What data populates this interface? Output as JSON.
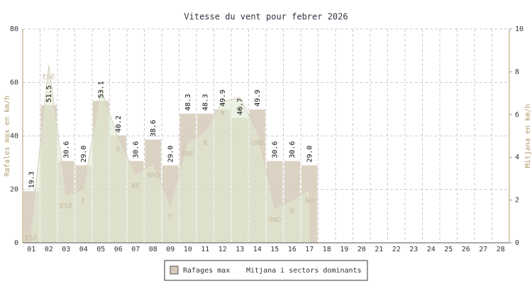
{
  "chart_data": {
    "type": "bar",
    "title": "Vitesse du vent pour febrer 2026",
    "ylabel": "Rafales max en km/h",
    "y2label": "Mitjana en km/h",
    "categories": [
      "01",
      "02",
      "03",
      "04",
      "05",
      "06",
      "07",
      "08",
      "09",
      "10",
      "11",
      "12",
      "13",
      "14",
      "15",
      "16",
      "17",
      "18",
      "19",
      "20",
      "21",
      "22",
      "23",
      "24",
      "25",
      "26",
      "27",
      "28"
    ],
    "ylim": [
      0,
      80
    ],
    "yticks": [
      0,
      20,
      40,
      60,
      80
    ],
    "y2lim": [
      0,
      10
    ],
    "y2ticks": [
      0,
      2,
      4,
      6,
      8,
      10
    ],
    "grid": true,
    "series": [
      {
        "name": "Rafages max",
        "color": "#d6cab8",
        "values": [
          19.3,
          51.5,
          30.6,
          29.0,
          53.1,
          40.2,
          30.6,
          38.6,
          29.0,
          48.3,
          48.3,
          49.9,
          46.7,
          49.9,
          30.6,
          30.6,
          29.0,
          null,
          null,
          null,
          null,
          null,
          null,
          null,
          null,
          null,
          null,
          null
        ],
        "value_labels": [
          "19.3",
          "51.5",
          "30.6",
          "29.0",
          "53.1",
          "40.2",
          "30.6",
          "38.6",
          "29.0",
          "48.3",
          "48.3",
          "49.9",
          "46.7",
          "49.9",
          "30.6",
          "30.6",
          "29.0",
          null,
          null,
          null,
          null,
          null,
          null,
          null,
          null,
          null,
          null,
          null
        ]
      },
      {
        "name": "Mitjana i sectors dominants",
        "axis": "y2",
        "color": "#dfe9d2",
        "values": [
          0.76,
          8.3,
          2.25,
          2.5,
          7.2,
          4.9,
          3.2,
          3.7,
          1.75,
          4.7,
          5.2,
          6.6,
          6.8,
          5.2,
          1.6,
          2.0,
          2.5,
          null,
          null,
          null,
          null,
          null,
          null,
          null,
          null,
          null,
          null,
          null
        ],
        "point_labels": [
          "ESE",
          "ESE",
          "ESE",
          "E",
          null,
          "E",
          "NE",
          "NNO",
          "E",
          "ENE",
          "N",
          "N",
          "E",
          "ONO",
          "ONO",
          "N",
          "NO",
          null,
          null,
          null,
          null,
          null,
          null,
          null,
          null,
          null,
          null,
          null
        ]
      }
    ]
  }
}
